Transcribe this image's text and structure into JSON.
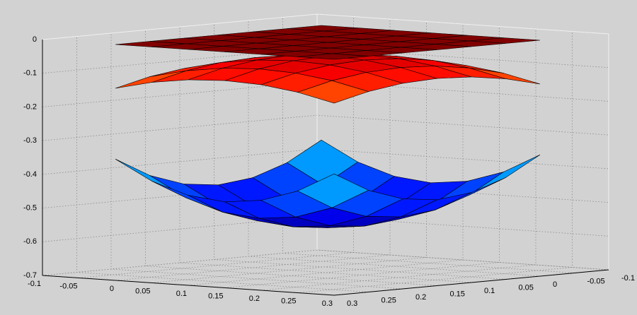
{
  "chart_data": {
    "type": "surface",
    "xlim": [
      -0.1,
      0.3
    ],
    "ylim": [
      -0.1,
      0.3
    ],
    "zlim": [
      -0.7,
      0
    ],
    "xticks": [
      -0.1,
      -0.05,
      0,
      0.05,
      0.1,
      0.15,
      0.2,
      0.25,
      0.3
    ],
    "yticks": [
      -0.1,
      -0.05,
      0,
      0.05,
      0.1,
      0.15,
      0.2,
      0.25,
      0.3
    ],
    "zticks": [
      0,
      -0.1,
      -0.2,
      -0.3,
      -0.4,
      -0.5,
      -0.6,
      -0.7
    ],
    "grid": true,
    "colormap": "jet",
    "surface_x": [
      0,
      0.05,
      0.1,
      0.15,
      0.2,
      0.25,
      0.3
    ],
    "surface_y": [
      0,
      0.05,
      0.1,
      0.15,
      0.2,
      0.25,
      0.3
    ],
    "surfaces": [
      {
        "z": [
          [
            0,
            0,
            0,
            0,
            0,
            0,
            0
          ],
          [
            0,
            0,
            0,
            0,
            0,
            0,
            0
          ],
          [
            0,
            0,
            0,
            0,
            0,
            0,
            0
          ],
          [
            0,
            0,
            0,
            0,
            0,
            0,
            0
          ],
          [
            0,
            0,
            0,
            0,
            0,
            0,
            0
          ],
          [
            0,
            0,
            0,
            0,
            0,
            0,
            0
          ],
          [
            0,
            0,
            0,
            0,
            0,
            0,
            0
          ]
        ]
      },
      {
        "z": [
          [
            -0.13,
            -0.105,
            -0.09,
            -0.085,
            -0.09,
            -0.105,
            -0.13
          ],
          [
            -0.105,
            -0.08,
            -0.065,
            -0.06,
            -0.065,
            -0.08,
            -0.105
          ],
          [
            -0.09,
            -0.065,
            -0.05,
            -0.045,
            -0.05,
            -0.065,
            -0.09
          ],
          [
            -0.085,
            -0.06,
            -0.045,
            -0.04,
            -0.045,
            -0.06,
            -0.085
          ],
          [
            -0.09,
            -0.065,
            -0.05,
            -0.045,
            -0.05,
            -0.065,
            -0.09
          ],
          [
            -0.105,
            -0.08,
            -0.065,
            -0.06,
            -0.065,
            -0.08,
            -0.105
          ],
          [
            -0.13,
            -0.105,
            -0.09,
            -0.085,
            -0.09,
            -0.105,
            -0.13
          ]
        ]
      },
      {
        "z": [
          [
            -0.34,
            -0.398,
            -0.433,
            -0.445,
            -0.433,
            -0.398,
            -0.34
          ],
          [
            -0.398,
            -0.457,
            -0.492,
            -0.503,
            -0.492,
            -0.457,
            -0.398
          ],
          [
            -0.433,
            -0.492,
            -0.527,
            -0.538,
            -0.527,
            -0.492,
            -0.433
          ],
          [
            -0.445,
            -0.503,
            -0.538,
            -0.55,
            -0.538,
            -0.503,
            -0.445
          ],
          [
            -0.433,
            -0.492,
            -0.527,
            -0.538,
            -0.527,
            -0.492,
            -0.433
          ],
          [
            -0.398,
            -0.457,
            -0.492,
            -0.503,
            -0.492,
            -0.457,
            -0.398
          ],
          [
            -0.34,
            -0.398,
            -0.433,
            -0.445,
            -0.433,
            -0.398,
            -0.34
          ]
        ]
      }
    ]
  }
}
